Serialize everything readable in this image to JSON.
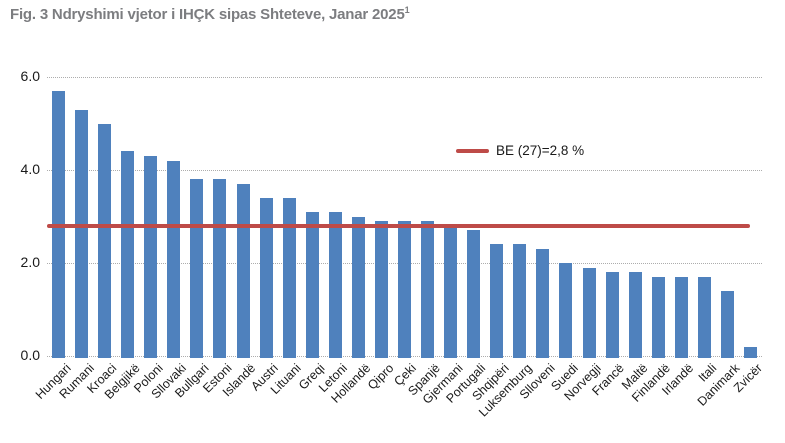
{
  "figure": {
    "title": "Fig. 3 Ndryshimi vjetor i IHÇK sipas Shteteve, Janar 2025",
    "title_superscript": "1"
  },
  "legend": {
    "label": "BE (27)=2,8 %"
  },
  "colors": {
    "bar": "#4F81BD",
    "reference_line": "#BE4B48",
    "gridline": "#ADADAD",
    "title_text": "#7C7D80",
    "axis_text": "#1A1A1A",
    "background": "#FFFFFF"
  },
  "chart_data": {
    "type": "bar",
    "title": "Fig. 3 Ndryshimi vjetor i IHÇK sipas Shteteve, Janar 2025¹",
    "categories": [
      "Hungari",
      "Rumani",
      "Kroaci",
      "Belgjikë",
      "Poloni",
      "Sllovaki",
      "Bullgari",
      "Estoni",
      "Islandë",
      "Austri",
      "Lituani",
      "Greqi",
      "Letoni",
      "Hollandë",
      "Qipro",
      "Çeki",
      "Spanjë",
      "Gjermani",
      "Portugali",
      "Shqipëri",
      "Luksemburg",
      "Slloveni",
      "Suedi",
      "Norvegji",
      "Francë",
      "Maltë",
      "Finlandë",
      "Irlandë",
      "Itali",
      "Danimark",
      "Zvicër"
    ],
    "values": [
      5.7,
      5.3,
      5.0,
      4.4,
      4.3,
      4.2,
      3.8,
      3.8,
      3.7,
      3.4,
      3.4,
      3.1,
      3.1,
      3.0,
      2.9,
      2.9,
      2.9,
      2.8,
      2.7,
      2.4,
      2.4,
      2.3,
      2.0,
      1.9,
      1.8,
      1.8,
      1.7,
      1.7,
      1.7,
      1.4,
      0.2
    ],
    "reference_line": {
      "value": 2.8,
      "label": "BE (27)=2,8 %"
    },
    "xlabel": "",
    "ylabel": "",
    "ylim": [
      0,
      6.3
    ],
    "yticks": [
      0,
      2,
      4,
      6
    ],
    "ytick_labels": [
      "0.0",
      "2.0",
      "4.0",
      "6.0"
    ],
    "grid": "horizontal-dotted",
    "legend_position": "inside-upper-right",
    "x_label_rotation": -45
  }
}
